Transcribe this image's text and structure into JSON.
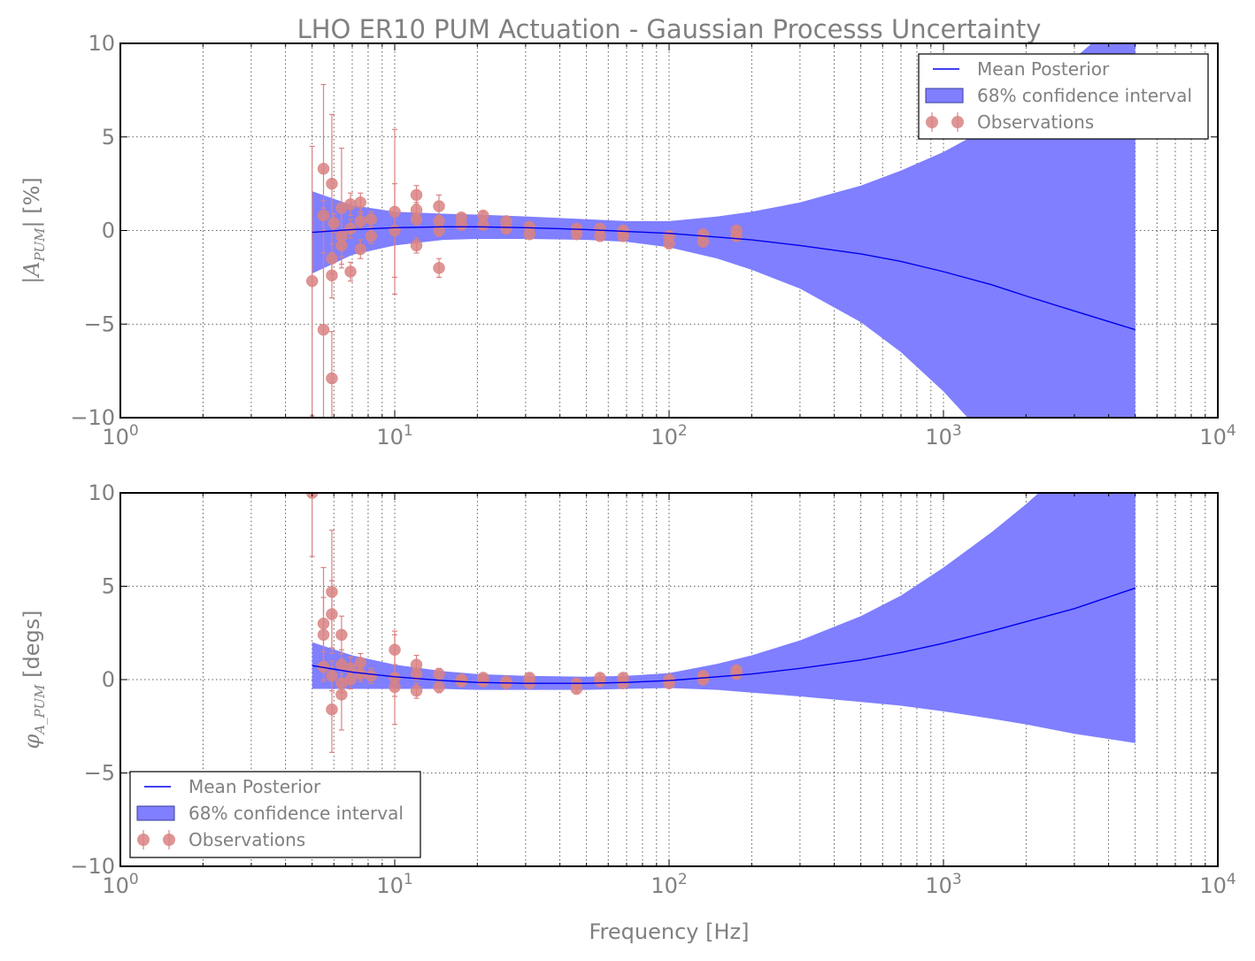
{
  "title": "LHO ER10 PUM Actuation - Gaussian Processs Uncertainty",
  "xlabel": "Frequency [Hz]",
  "colors": {
    "mean_line": "#0000ee",
    "band_fill": "#7f7fff",
    "band_edge": "#3b3b9a",
    "observations": "#d98282",
    "text": "#808080",
    "axis": "#000000"
  },
  "chart_data": [
    {
      "id": "amplitude",
      "type": "line",
      "ylabel": "|A_PUM| [%]",
      "ylabel_main": "|A",
      "ylabel_sub": "PUM",
      "ylabel_end": "| [%]",
      "xscale": "log",
      "xlim": [
        1,
        10000
      ],
      "ylim": [
        -10,
        10
      ],
      "xticks": [
        {
          "base": "10",
          "exp": "0"
        },
        {
          "base": "10",
          "exp": "1"
        },
        {
          "base": "10",
          "exp": "2"
        },
        {
          "base": "10",
          "exp": "3"
        },
        {
          "base": "10",
          "exp": "4"
        }
      ],
      "yticks": [
        "10",
        "5",
        "0",
        "−5",
        "−10"
      ],
      "grid": true,
      "legend_position": "upper right",
      "legend": [
        "Mean Posterior",
        "68% confidence interval",
        "Observations"
      ],
      "mean_posterior": {
        "x": [
          5,
          7,
          10,
          15,
          20,
          30,
          50,
          70,
          100,
          150,
          200,
          300,
          500,
          700,
          1000,
          1500,
          2000,
          3000,
          5000
        ],
        "y": [
          -0.1,
          0.05,
          0.15,
          0.2,
          0.2,
          0.15,
          0.05,
          -0.05,
          -0.15,
          -0.35,
          -0.5,
          -0.8,
          -1.25,
          -1.65,
          -2.2,
          -2.9,
          -3.5,
          -4.3,
          -5.3
        ]
      },
      "confidence_interval": {
        "x": [
          5,
          7,
          10,
          15,
          20,
          30,
          50,
          70,
          100,
          150,
          200,
          300,
          500,
          700,
          1000,
          1500,
          2000,
          3000,
          5000
        ],
        "upper": [
          2.1,
          1.35,
          1.0,
          0.9,
          0.85,
          0.75,
          0.6,
          0.5,
          0.5,
          0.75,
          1.0,
          1.5,
          2.4,
          3.2,
          4.2,
          5.6,
          7.0,
          9.2,
          12.0
        ],
        "lower": [
          -2.3,
          -1.3,
          -0.8,
          -0.5,
          -0.45,
          -0.45,
          -0.5,
          -0.6,
          -0.9,
          -1.5,
          -2.1,
          -3.1,
          -4.9,
          -6.5,
          -8.6,
          -11.4,
          -14.0,
          -17.8,
          -22.6
        ]
      },
      "observations": [
        {
          "x": 5.0,
          "y": -2.7,
          "err": 7.2
        },
        {
          "x": 5.5,
          "y": 3.3,
          "err": 4.5
        },
        {
          "x": 5.5,
          "y": -5.3,
          "err": 6.5
        },
        {
          "x": 5.5,
          "y": 0.8,
          "err": 0.8
        },
        {
          "x": 5.9,
          "y": 2.5,
          "err": 3.7
        },
        {
          "x": 5.9,
          "y": -7.9,
          "err": 2.5
        },
        {
          "x": 5.9,
          "y": -2.4,
          "err": 1.2
        },
        {
          "x": 5.9,
          "y": -1.5,
          "err": 0.8
        },
        {
          "x": 6.0,
          "y": 0.4,
          "err": 0.5
        },
        {
          "x": 6.4,
          "y": 1.2,
          "err": 3.2
        },
        {
          "x": 6.4,
          "y": -0.3,
          "err": 1.5
        },
        {
          "x": 6.4,
          "y": -0.8,
          "err": 0.6
        },
        {
          "x": 6.9,
          "y": 1.4,
          "err": 0.6
        },
        {
          "x": 6.9,
          "y": -2.2,
          "err": 0.5
        },
        {
          "x": 6.9,
          "y": 0.1,
          "err": 0.5
        },
        {
          "x": 7.5,
          "y": 1.5,
          "err": 0.5
        },
        {
          "x": 7.5,
          "y": -1.0,
          "err": 0.5
        },
        {
          "x": 7.5,
          "y": 0.5,
          "err": 0.4
        },
        {
          "x": 8.2,
          "y": 0.6,
          "err": 0.4
        },
        {
          "x": 8.2,
          "y": -0.3,
          "err": 0.4
        },
        {
          "x": 10.0,
          "y": 1.0,
          "err": 4.4
        },
        {
          "x": 10.0,
          "y": 0.0,
          "err": 2.5
        },
        {
          "x": 12.0,
          "y": 1.9,
          "err": 0.5
        },
        {
          "x": 12.0,
          "y": 1.1,
          "err": 0.4
        },
        {
          "x": 12.0,
          "y": 0.6,
          "err": 0.3
        },
        {
          "x": 12.0,
          "y": -0.8,
          "err": 0.4
        },
        {
          "x": 14.5,
          "y": 1.3,
          "err": 0.6
        },
        {
          "x": 14.5,
          "y": 0.5,
          "err": 0.3
        },
        {
          "x": 14.5,
          "y": 0.0,
          "err": 0.3
        },
        {
          "x": 14.5,
          "y": -2.0,
          "err": 0.5
        },
        {
          "x": 17.5,
          "y": 0.7,
          "err": 0.2
        },
        {
          "x": 17.5,
          "y": 0.3,
          "err": 0.2
        },
        {
          "x": 21.0,
          "y": 0.8,
          "err": 0.2
        },
        {
          "x": 21.0,
          "y": 0.3,
          "err": 0.2
        },
        {
          "x": 25.5,
          "y": 0.5,
          "err": 0.2
        },
        {
          "x": 25.5,
          "y": 0.1,
          "err": 0.2
        },
        {
          "x": 31.0,
          "y": 0.2,
          "err": 0.2
        },
        {
          "x": 31.0,
          "y": -0.2,
          "err": 0.2
        },
        {
          "x": 46.0,
          "y": 0.1,
          "err": 0.2
        },
        {
          "x": 46.0,
          "y": -0.2,
          "err": 0.2
        },
        {
          "x": 56.0,
          "y": 0.1,
          "err": 0.2
        },
        {
          "x": 56.0,
          "y": -0.3,
          "err": 0.2
        },
        {
          "x": 68.0,
          "y": 0.0,
          "err": 0.2
        },
        {
          "x": 68.0,
          "y": -0.3,
          "err": 0.2
        },
        {
          "x": 100.0,
          "y": -0.3,
          "err": 0.2
        },
        {
          "x": 100.0,
          "y": -0.7,
          "err": 0.2
        },
        {
          "x": 133.0,
          "y": -0.2,
          "err": 0.2
        },
        {
          "x": 133.0,
          "y": -0.6,
          "err": 0.2
        },
        {
          "x": 176.0,
          "y": 0.0,
          "err": 0.2
        },
        {
          "x": 176.0,
          "y": -0.3,
          "err": 0.2
        }
      ]
    },
    {
      "id": "phase",
      "type": "line",
      "ylabel": "φ_A_PUM [degs]",
      "ylabel_main": "φ",
      "ylabel_sub": "A_PUM",
      "ylabel_end": " [degs]",
      "xscale": "log",
      "xlim": [
        1,
        10000
      ],
      "ylim": [
        -10,
        10
      ],
      "xticks": [
        {
          "base": "10",
          "exp": "0"
        },
        {
          "base": "10",
          "exp": "1"
        },
        {
          "base": "10",
          "exp": "2"
        },
        {
          "base": "10",
          "exp": "3"
        },
        {
          "base": "10",
          "exp": "4"
        }
      ],
      "yticks": [
        "10",
        "5",
        "0",
        "−5",
        "−10"
      ],
      "grid": true,
      "legend_position": "lower left",
      "legend": [
        "Mean Posterior",
        "68% confidence interval",
        "Observations"
      ],
      "mean_posterior": {
        "x": [
          5,
          7,
          10,
          15,
          20,
          30,
          50,
          70,
          100,
          150,
          200,
          300,
          500,
          700,
          1000,
          1500,
          2000,
          3000,
          5000
        ],
        "y": [
          0.75,
          0.4,
          0.15,
          -0.05,
          -0.15,
          -0.2,
          -0.2,
          -0.15,
          -0.05,
          0.15,
          0.3,
          0.6,
          1.05,
          1.45,
          1.95,
          2.6,
          3.1,
          3.8,
          4.9
        ]
      },
      "confidence_interval": {
        "x": [
          5,
          7,
          10,
          15,
          20,
          30,
          50,
          70,
          100,
          150,
          200,
          300,
          500,
          700,
          1000,
          1500,
          2000,
          3000,
          5000
        ],
        "upper": [
          2.0,
          1.3,
          0.8,
          0.45,
          0.3,
          0.2,
          0.15,
          0.2,
          0.35,
          0.85,
          1.3,
          2.1,
          3.4,
          4.5,
          6.0,
          7.9,
          9.4,
          11.7,
          14.9
        ],
        "lower": [
          -0.5,
          -0.5,
          -0.5,
          -0.5,
          -0.55,
          -0.55,
          -0.55,
          -0.5,
          -0.45,
          -0.55,
          -0.7,
          -0.9,
          -1.2,
          -1.4,
          -1.7,
          -2.1,
          -2.4,
          -2.9,
          -3.4
        ]
      },
      "observations": [
        {
          "x": 5.0,
          "y": 10.0,
          "err": 3.4
        },
        {
          "x": 5.5,
          "y": 3.0,
          "err": 3.0
        },
        {
          "x": 5.5,
          "y": 2.4,
          "err": 2.0
        },
        {
          "x": 5.5,
          "y": 0.7,
          "err": 0.8
        },
        {
          "x": 5.9,
          "y": 4.7,
          "err": 3.3
        },
        {
          "x": 5.9,
          "y": 3.5,
          "err": 1.8
        },
        {
          "x": 5.9,
          "y": -1.6,
          "err": 2.3
        },
        {
          "x": 5.9,
          "y": 0.2,
          "err": 0.8
        },
        {
          "x": 6.4,
          "y": 2.4,
          "err": 1.0
        },
        {
          "x": 6.4,
          "y": -0.8,
          "err": 1.9
        },
        {
          "x": 6.4,
          "y": 0.8,
          "err": 0.8
        },
        {
          "x": 6.4,
          "y": -0.2,
          "err": 0.5
        },
        {
          "x": 6.9,
          "y": 0.6,
          "err": 0.6
        },
        {
          "x": 6.9,
          "y": 0.0,
          "err": 0.5
        },
        {
          "x": 7.5,
          "y": 0.9,
          "err": 0.5
        },
        {
          "x": 7.5,
          "y": 0.3,
          "err": 0.4
        },
        {
          "x": 8.2,
          "y": 0.2,
          "err": 0.4
        },
        {
          "x": 10.0,
          "y": 1.6,
          "err": 0.8
        },
        {
          "x": 10.0,
          "y": 0.1,
          "err": 2.5
        },
        {
          "x": 10.0,
          "y": -0.4,
          "err": 0.5
        },
        {
          "x": 12.0,
          "y": 0.8,
          "err": 0.5
        },
        {
          "x": 12.0,
          "y": 0.3,
          "err": 0.3
        },
        {
          "x": 12.0,
          "y": -0.6,
          "err": 0.4
        },
        {
          "x": 14.5,
          "y": 0.3,
          "err": 0.3
        },
        {
          "x": 14.5,
          "y": -0.4,
          "err": 0.3
        },
        {
          "x": 17.5,
          "y": 0.0,
          "err": 0.2
        },
        {
          "x": 17.5,
          "y": -0.1,
          "err": 0.2
        },
        {
          "x": 21.0,
          "y": 0.1,
          "err": 0.2
        },
        {
          "x": 21.0,
          "y": -0.1,
          "err": 0.2
        },
        {
          "x": 25.5,
          "y": -0.1,
          "err": 0.2
        },
        {
          "x": 25.5,
          "y": -0.2,
          "err": 0.2
        },
        {
          "x": 31.0,
          "y": 0.1,
          "err": 0.2
        },
        {
          "x": 31.0,
          "y": -0.2,
          "err": 0.2
        },
        {
          "x": 46.0,
          "y": -0.2,
          "err": 0.2
        },
        {
          "x": 46.0,
          "y": -0.5,
          "err": 0.2
        },
        {
          "x": 56.0,
          "y": 0.1,
          "err": 0.2
        },
        {
          "x": 56.0,
          "y": -0.1,
          "err": 0.2
        },
        {
          "x": 68.0,
          "y": 0.1,
          "err": 0.2
        },
        {
          "x": 68.0,
          "y": -0.2,
          "err": 0.2
        },
        {
          "x": 100.0,
          "y": 0.0,
          "err": 0.2
        },
        {
          "x": 100.0,
          "y": -0.2,
          "err": 0.2
        },
        {
          "x": 133.0,
          "y": 0.2,
          "err": 0.2
        },
        {
          "x": 133.0,
          "y": 0.0,
          "err": 0.2
        },
        {
          "x": 176.0,
          "y": 0.5,
          "err": 0.2
        },
        {
          "x": 176.0,
          "y": 0.3,
          "err": 0.2
        }
      ]
    }
  ]
}
